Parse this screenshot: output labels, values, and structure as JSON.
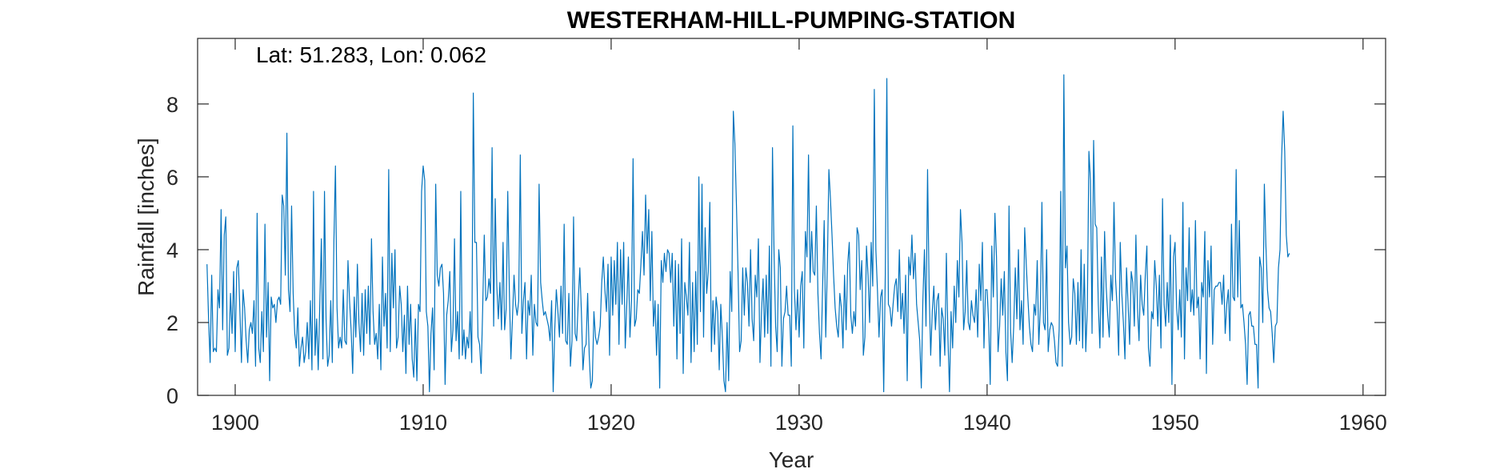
{
  "chart_data": {
    "type": "line",
    "title": "WESTERHAM-HILL-PUMPING-STATION",
    "annotation": "Lat: 51.283, Lon: 0.062",
    "xlabel": "Year",
    "ylabel": "Rainfall [inches]",
    "xlim": [
      1898.0,
      1961.2
    ],
    "ylim": [
      0,
      9.8
    ],
    "xticks": [
      1900,
      1910,
      1920,
      1930,
      1940,
      1950,
      1960
    ],
    "yticks": [
      0,
      2,
      4,
      6,
      8
    ],
    "grid": false,
    "line_color": "#0072BD",
    "axis_color": "#262626",
    "series": [
      {
        "x_start": 1898.5,
        "x_step": 0.0833333,
        "values": [
          3.6,
          2.1,
          0.9,
          3.3,
          1.2,
          1.3,
          1.2,
          2.9,
          2.4,
          5.1,
          1.8,
          4.4,
          4.9,
          1.1,
          1.3,
          2.8,
          1.7,
          3.4,
          1.2,
          3.5,
          3.7,
          2.3,
          0.9,
          2.9,
          2.4,
          1.5,
          0.9,
          1.8,
          2.0,
          1.7,
          2.6,
          0.8,
          5.0,
          1.3,
          0.9,
          2.3,
          1.2,
          4.7,
          1.6,
          3.1,
          0.4,
          2.7,
          2.4,
          2.5,
          2.0,
          2.6,
          2.7,
          2.5,
          5.5,
          5.2,
          3.3,
          7.2,
          2.9,
          2.3,
          5.2,
          2.8,
          1.7,
          1.3,
          2.4,
          0.8,
          1.3,
          1.6,
          0.9,
          1.2,
          2.0,
          1.0,
          2.6,
          0.7,
          5.6,
          1.1,
          2.1,
          0.7,
          2.5,
          4.3,
          1.0,
          5.6,
          2.1,
          0.8,
          1.1,
          2.6,
          0.9,
          4.2,
          6.3,
          2.4,
          1.3,
          1.6,
          1.3,
          2.9,
          1.5,
          1.4,
          3.7,
          2.6,
          1.8,
          0.6,
          2.7,
          1.6,
          3.6,
          2.0,
          1.2,
          2.8,
          1.1,
          2.9,
          1.7,
          3.0,
          1.4,
          4.3,
          2.3,
          1.4,
          1.7,
          1.0,
          2.5,
          0.7,
          3.8,
          1.9,
          2.8,
          1.3,
          6.2,
          1.2,
          3.9,
          2.4,
          4.0,
          1.3,
          1.6,
          3.0,
          2.5,
          1.2,
          2.2,
          0.6,
          3.0,
          1.4,
          2.5,
          1.0,
          0.5,
          2.1,
          0.4,
          2.5,
          2.3,
          5.6,
          6.3,
          5.9,
          2.3,
          1.9,
          0.1,
          1.7,
          2.4,
          0.7,
          5.8,
          3.3,
          3.0,
          3.5,
          3.6,
          2.8,
          0.3,
          2.2,
          2.6,
          3.4,
          1.2,
          1.8,
          4.3,
          1.5,
          2.3,
          1.0,
          5.6,
          1.1,
          1.8,
          1.0,
          1.6,
          1.3,
          2.3,
          0.9,
          8.3,
          4.2,
          4.2,
          1.6,
          1.4,
          0.6,
          2.4,
          4.4,
          2.6,
          2.7,
          3.2,
          2.8,
          6.8,
          1.9,
          5.4,
          3.0,
          2.1,
          3.1,
          1.8,
          4.2,
          1.8,
          2.4,
          5.6,
          2.9,
          1.0,
          2.1,
          3.3,
          2.5,
          2.2,
          2.6,
          6.6,
          1.7,
          2.6,
          3.1,
          1.0,
          2.6,
          2.2,
          3.3,
          1.1,
          2.5,
          2.0,
          1.9,
          5.8,
          3.1,
          2.6,
          2.2,
          2.3,
          2.1,
          1.9,
          1.5,
          2.6,
          0.1,
          1.8,
          2.9,
          2.3,
          1.6,
          3.0,
          1.7,
          4.7,
          1.5,
          1.4,
          2.8,
          0.8,
          1.5,
          4.9,
          1.7,
          1.5,
          2.6,
          3.5,
          2.3,
          0.7,
          1.3,
          1.4,
          2.8,
          1.1,
          0.2,
          0.4,
          2.3,
          1.6,
          1.4,
          1.6,
          1.9,
          3.1,
          3.8,
          2.9,
          2.3,
          3.6,
          1.1,
          3.8,
          2.2,
          3.7,
          2.5,
          4.2,
          1.4,
          4.0,
          2.5,
          4.2,
          1.3,
          2.5,
          3.8,
          1.6,
          2.6,
          6.5,
          1.9,
          2.1,
          2.9,
          2.8,
          3.6,
          4.5,
          3.3,
          5.5,
          3.9,
          5.1,
          2.6,
          4.5,
          1.9,
          2.6,
          1.1,
          2.5,
          0.2,
          3.7,
          3.1,
          3.9,
          3.4,
          4.0,
          3.9,
          3.1,
          3.9,
          1.9,
          3.7,
          1.0,
          3.6,
          1.7,
          4.3,
          0.6,
          3.1,
          2.7,
          2.2,
          4.2,
          0.9,
          3.1,
          1.2,
          3.4,
          1.4,
          6.0,
          2.3,
          5.8,
          1.6,
          4.6,
          2.8,
          3.4,
          5.3,
          1.2,
          2.6,
          1.4,
          2.7,
          2.3,
          0.7,
          2.5,
          1.6,
          0.4,
          0.1,
          2.0,
          0.4,
          3.4,
          2.3,
          7.8,
          6.9,
          5.2,
          3.4,
          1.2,
          1.5,
          3.5,
          2.2,
          3.5,
          3.1,
          1.9,
          4.0,
          2.1,
          1.5,
          3.3,
          2.7,
          4.3,
          0.9,
          2.3,
          3.2,
          1.6,
          3.3,
          1.7,
          4.1,
          0.8,
          6.8,
          3.9,
          1.9,
          1.2,
          4.0,
          3.5,
          0.8,
          2.1,
          2.3,
          3.0,
          2.2,
          2.2,
          0.8,
          7.4,
          2.9,
          1.8,
          2.9,
          1.6,
          3.0,
          3.4,
          1.3,
          4.5,
          3.8,
          6.6,
          3.1,
          4.5,
          3.4,
          3.3,
          5.2,
          2.8,
          1.7,
          1.0,
          3.0,
          4.8,
          1.6,
          3.5,
          6.2,
          5.4,
          4.4,
          3.3,
          2.4,
          1.9,
          1.6,
          2.8,
          2.4,
          1.3,
          3.3,
          1.8,
          3.6,
          4.2,
          2.2,
          1.7,
          2.3,
          1.9,
          4.6,
          4.4,
          2.9,
          3.7,
          1.1,
          1.6,
          4.1,
          3.3,
          2.0,
          4.2,
          3.0,
          8.4,
          4.0,
          2.9,
          1.6,
          2.7,
          2.9,
          0.1,
          3.3,
          8.7,
          2.5,
          2.4,
          1.9,
          2.5,
          3.0,
          3.2,
          2.3,
          4.0,
          2.1,
          2.8,
          1.7,
          3.3,
          0.4,
          3.8,
          3.3,
          4.4,
          3.2,
          3.9,
          2.5,
          2.0,
          1.5,
          0.2,
          2.6,
          4.0,
          1.9,
          6.2,
          2.9,
          1.1,
          2.3,
          3.0,
          1.8,
          2.6,
          2.8,
          0.8,
          2.4,
          2.1,
          1.1,
          3.9,
          1.6,
          0.1,
          2.3,
          1.3,
          3.0,
          2.0,
          3.7,
          2.7,
          5.1,
          4.2,
          1.8,
          2.3,
          3.7,
          2.0,
          1.8,
          2.6,
          2.2,
          2.0,
          2.9,
          1.6,
          3.6,
          2.6,
          4.2,
          1.3,
          2.9,
          2.9,
          2.0,
          0.3,
          4.1,
          2.7,
          5.0,
          3.8,
          1.2,
          1.9,
          3.2,
          2.2,
          3.4,
          1.2,
          0.4,
          5.2,
          1.8,
          0.9,
          1.9,
          3.5,
          2.1,
          4.0,
          1.8,
          2.6,
          1.4,
          4.6,
          3.6,
          2.7,
          1.9,
          1.4,
          1.2,
          2.5,
          2.2,
          3.7,
          1.4,
          2.4,
          5.3,
          2.0,
          1.8,
          4.0,
          1.2,
          1.8,
          2.0,
          1.9,
          1.5,
          0.9,
          0.8,
          1.8,
          5.6,
          0.8,
          8.8,
          3.5,
          4.1,
          2.0,
          1.4,
          1.6,
          3.2,
          2.8,
          1.4,
          3.1,
          1.5,
          4.0,
          1.3,
          3.6,
          1.2,
          2.4,
          6.7,
          5.9,
          1.7,
          7.0,
          4.7,
          4.6,
          2.5,
          1.3,
          3.8,
          1.6,
          4.5,
          3.0,
          2.2,
          1.6,
          3.3,
          2.6,
          5.3,
          3.2,
          2.4,
          1.1,
          4.2,
          2.8,
          2.0,
          1.0,
          3.5,
          2.5,
          1.4,
          3.4,
          3.1,
          1.9,
          4.4,
          2.4,
          1.5,
          3.3,
          2.5,
          2.2,
          3.3,
          4.1,
          1.3,
          0.8,
          2.3,
          2.1,
          3.7,
          3.0,
          1.9,
          3.3,
          1.3,
          5.4,
          2.5,
          1.9,
          3.1,
          2.0,
          4.4,
          0.3,
          3.8,
          4.2,
          2.4,
          1.8,
          2.9,
          1.6,
          5.3,
          1.0,
          3.5,
          2.6,
          4.6,
          2.3,
          2.9,
          2.2,
          4.8,
          2.4,
          2.7,
          1.0,
          3.1,
          2.7,
          4.5,
          0.6,
          3.7,
          2.7,
          4.1,
          1.4,
          2.9,
          3.0,
          3.0,
          3.1,
          3.1,
          2.5,
          3.3,
          1.7,
          2.5,
          2.9,
          1.5,
          4.7,
          2.7,
          2.6,
          6.2,
          2.7,
          4.8,
          2.4,
          2.5,
          2.0,
          1.4,
          0.3,
          2.2,
          2.3,
          1.9,
          1.9,
          1.4,
          1.4,
          0.2,
          3.8,
          3.5,
          2.0,
          5.8,
          4.1,
          2.9,
          2.4,
          2.3,
          1.7,
          0.9,
          1.9,
          2.0,
          3.5,
          4.0,
          6.5,
          7.8,
          6.7,
          4.4,
          3.8,
          3.9
        ]
      }
    ]
  }
}
